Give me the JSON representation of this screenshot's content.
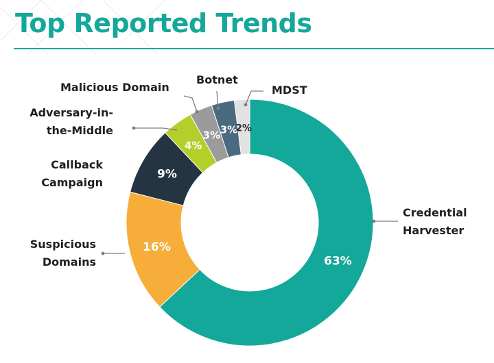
{
  "title": "Top Reported Trends",
  "colors": {
    "accent": "#14a89a"
  },
  "chart_data": {
    "type": "pie",
    "donut": true,
    "categories": [
      "Credential Harvester",
      "Suspicious Domains",
      "Callback Campaign",
      "Adversary-in-the-Middle",
      "Malicious Domain",
      "Botnet",
      "MDST"
    ],
    "values": [
      63,
      16,
      9,
      4,
      3,
      3,
      2
    ],
    "value_labels": [
      "63%",
      "16%",
      "9%",
      "4%",
      "3%",
      "3%",
      "2%"
    ],
    "colors": [
      "#14a89a",
      "#f6ad3a",
      "#243442",
      "#b5cf2a",
      "#9b9b9b",
      "#4a6b7f",
      "#e2e2e2"
    ]
  }
}
